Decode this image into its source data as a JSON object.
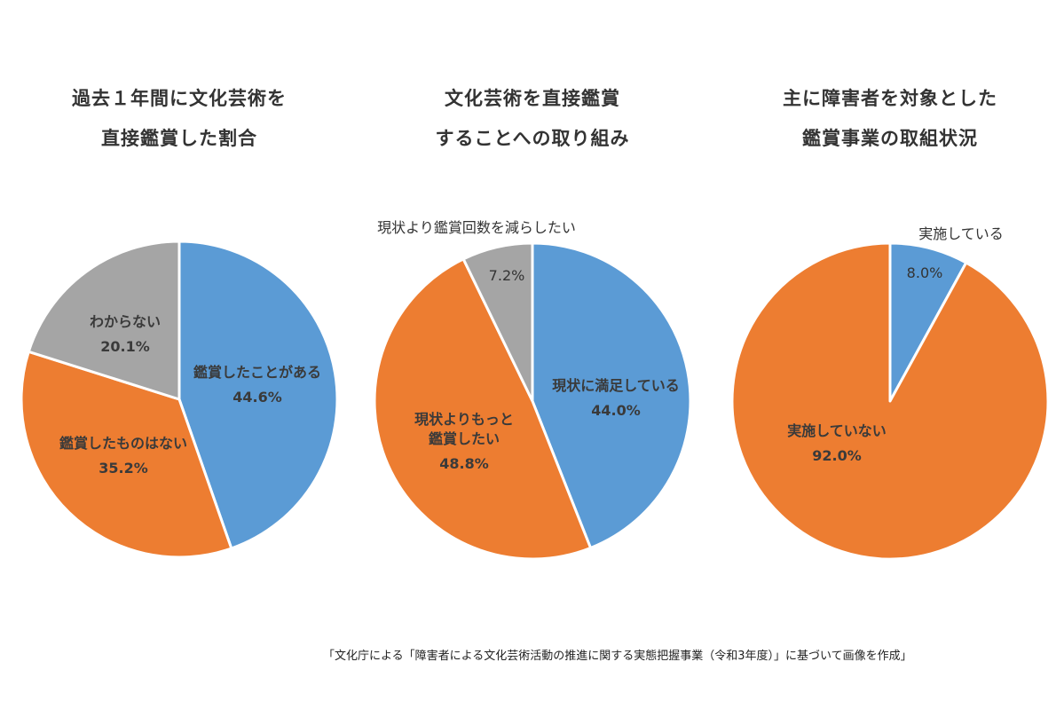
{
  "chart_data": [
    {
      "type": "pie",
      "title": [
        "過去１年間に文化芸術を",
        "直接鑑賞した割合"
      ],
      "slices": [
        {
          "label": "鑑賞したことがある",
          "value": 44.6,
          "value_label": "44.6%",
          "color": "#5b9bd5",
          "label_position": "inside"
        },
        {
          "label": "鑑賞したものはない",
          "value": 35.2,
          "value_label": "35.2%",
          "color": "#ed7d31",
          "label_position": "inside"
        },
        {
          "label": "わからない",
          "value": 20.1,
          "value_label": "20.1%",
          "color": "#a5a5a5",
          "label_position": "inside"
        }
      ]
    },
    {
      "type": "pie",
      "title": [
        "文化芸術を直接鑑賞",
        "することへの取り組み"
      ],
      "slices": [
        {
          "label": "現状に満足している",
          "value": 44.0,
          "value_label": "44.0%",
          "color": "#5b9bd5",
          "label_position": "inside"
        },
        {
          "label": "現状よりもっと\n鑑賞したい",
          "value": 48.8,
          "value_label": "48.8%",
          "color": "#ed7d31",
          "label_position": "inside"
        },
        {
          "label": "現状より鑑賞回数を減らしたい",
          "value": 7.2,
          "value_label": "7.2%",
          "color": "#a5a5a5",
          "label_position": "outside"
        }
      ]
    },
    {
      "type": "pie",
      "title": [
        "主に障害者を対象とした",
        "鑑賞事業の取組状況"
      ],
      "slices": [
        {
          "label": "実施している",
          "value": 8.0,
          "value_label": "8.0%",
          "color": "#5b9bd5",
          "label_position": "outside"
        },
        {
          "label": "実施していない",
          "value": 92.0,
          "value_label": "92.0%",
          "color": "#ed7d31",
          "label_position": "inside"
        }
      ]
    }
  ],
  "source_note": "「文化庁による「障害者による文化芸術活動の推進に関する実態把握事業（令和3年度）」に基づいて画像を作成」"
}
